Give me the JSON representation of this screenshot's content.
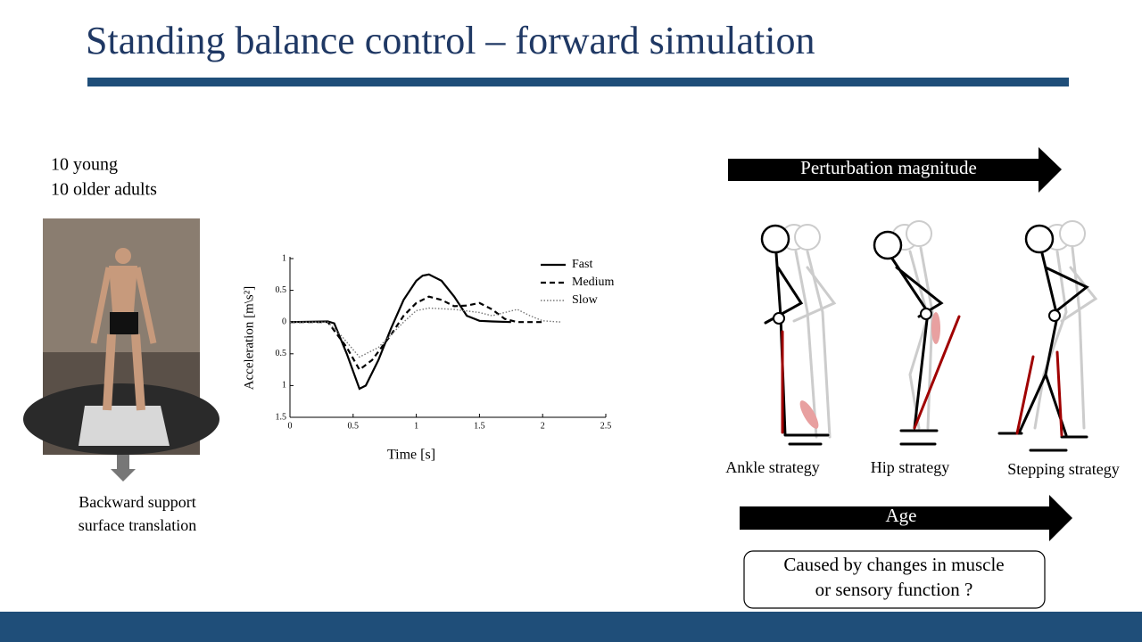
{
  "header": {
    "title": "Standing balance control – forward simulation"
  },
  "subjects": [
    "10 young",
    "10 older adults"
  ],
  "photo_caption": [
    "Backward support",
    "surface translation"
  ],
  "chart_data": {
    "type": "line",
    "ylabel": "Acceleration [m\\s²]",
    "xlabel": "Time [s]",
    "xlim": [
      0,
      2.5
    ],
    "xticks": [
      0,
      0.5,
      1,
      1.5,
      2,
      2.5
    ],
    "ylim": [
      -1.5,
      1
    ],
    "yticks": [
      {
        "value": -1.5,
        "label": "1.5"
      },
      {
        "value": -1,
        "label": "1"
      },
      {
        "value": -0.5,
        "label": "0.5"
      },
      0,
      0.5,
      1
    ],
    "legend": "top-right",
    "series": [
      {
        "name": "Fast",
        "color": "#000000",
        "style": "solid",
        "x": [
          0,
          0.3,
          0.35,
          0.45,
          0.55,
          0.6,
          0.7,
          0.8,
          0.9,
          1.0,
          1.05,
          1.1,
          1.2,
          1.3,
          1.4,
          1.5,
          1.6,
          1.75
        ],
        "values": [
          0,
          0.01,
          -0.02,
          -0.5,
          -1.05,
          -1.0,
          -0.6,
          -0.1,
          0.35,
          0.65,
          0.73,
          0.75,
          0.65,
          0.4,
          0.1,
          0.02,
          0.01,
          0
        ]
      },
      {
        "name": "Medium",
        "color": "#000000",
        "style": "dashed",
        "x": [
          0,
          0.3,
          0.45,
          0.55,
          0.65,
          0.8,
          0.9,
          1.0,
          1.1,
          1.2,
          1.3,
          1.4,
          1.5,
          1.6,
          1.7,
          1.8,
          2.0
        ],
        "values": [
          0,
          0,
          -0.4,
          -0.75,
          -0.6,
          -0.2,
          0.1,
          0.3,
          0.4,
          0.35,
          0.25,
          0.26,
          0.3,
          0.2,
          0.05,
          0,
          0
        ]
      },
      {
        "name": "Slow",
        "color": "#777777",
        "style": "dotted",
        "x": [
          0,
          0.3,
          0.4,
          0.55,
          0.7,
          0.9,
          1.0,
          1.1,
          1.3,
          1.5,
          1.6,
          1.7,
          1.8,
          1.9,
          2.0,
          2.15
        ],
        "values": [
          0,
          0,
          -0.2,
          -0.55,
          -0.4,
          0,
          0.18,
          0.22,
          0.2,
          0.15,
          0.1,
          0.15,
          0.2,
          0.1,
          0.02,
          0
        ]
      }
    ]
  },
  "perturbation": "Perturbation magnitude",
  "strategies": [
    "Ankle strategy",
    "Hip strategy",
    "Stepping strategy"
  ],
  "age": "Age",
  "question": [
    "Caused by changes in muscle",
    "or sensory function ?"
  ]
}
